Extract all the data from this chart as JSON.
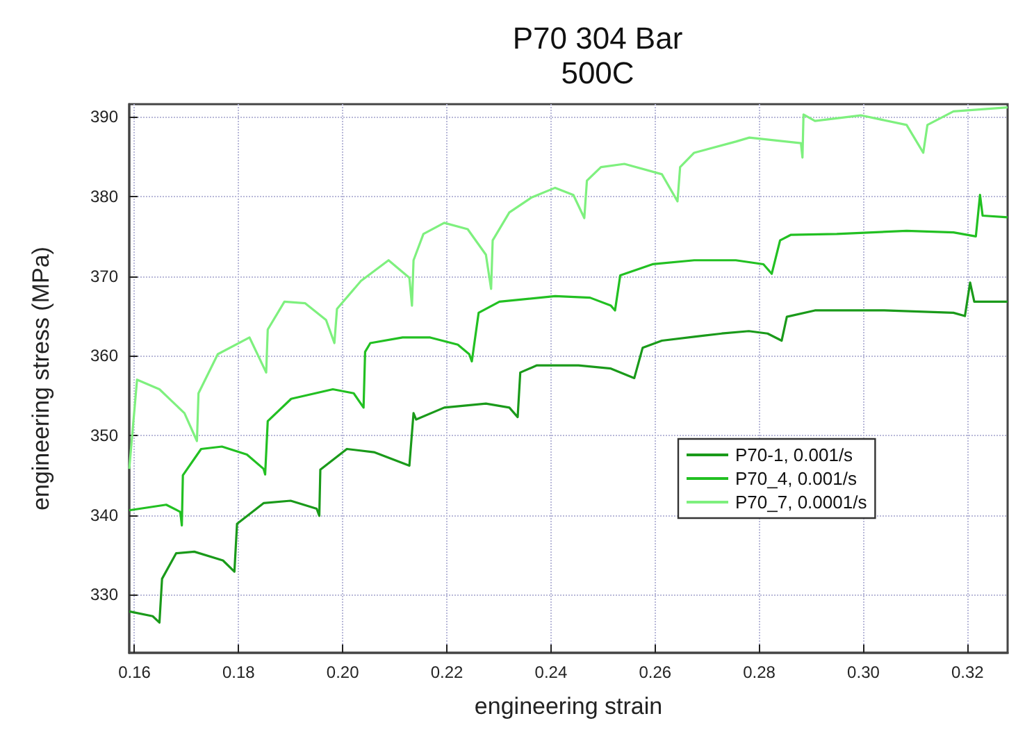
{
  "chart_data": {
    "type": "line",
    "title": "P70 304 Bar\n500C",
    "xlabel": "engineering strain",
    "ylabel": "engineering stress (MPa)",
    "xlim": [
      0.159,
      0.3277
    ],
    "ylim": [
      322.7,
      391.6
    ],
    "xticks": [
      0.16,
      0.18,
      {
        "value": 0.2,
        "label": "0.20"
      },
      0.22,
      0.24,
      0.26,
      0.28,
      {
        "value": 0.3,
        "label": "0.30"
      },
      0.32
    ],
    "yticks": [
      330,
      340,
      350,
      360,
      370,
      380,
      390
    ],
    "grid": true,
    "legend": "right",
    "marker": "none",
    "line_style": "solid",
    "series": [
      {
        "name": "P70-1, 0.001/s",
        "color": "#1a9a1a",
        "x": [
          0.159,
          0.1635,
          0.1648,
          0.1653,
          0.168,
          0.1715,
          0.177,
          0.1792,
          0.1797,
          0.1848,
          0.19,
          0.195,
          0.1955,
          0.1957,
          0.2008,
          0.206,
          0.2128,
          0.2136,
          0.2141,
          0.2195,
          0.2275,
          0.232,
          0.2336,
          0.2341,
          0.2373,
          0.2453,
          0.2515,
          0.256,
          0.2576,
          0.2613,
          0.2675,
          0.2728,
          0.278,
          0.2816,
          0.2843,
          0.2853,
          0.2907,
          0.304,
          0.3173,
          0.3195,
          0.3205,
          0.3213,
          0.3277
        ],
        "values": [
          327.9,
          327.3,
          326.5,
          332,
          335.2,
          335.4,
          334.3,
          332.9,
          338.9,
          341.5,
          341.8,
          340.8,
          339.9,
          345.7,
          348.3,
          347.9,
          346.2,
          352.8,
          352,
          353.5,
          354,
          353.5,
          352.3,
          357.9,
          358.8,
          358.8,
          358.4,
          357.2,
          361,
          361.9,
          362.4,
          362.8,
          363.1,
          362.8,
          361.9,
          364.9,
          365.7,
          365.7,
          365.4,
          365,
          369.2,
          366.8,
          366.8
        ]
      },
      {
        "name": "P70_4, 0.001/s",
        "color": "#22c022",
        "x": [
          0.159,
          0.1661,
          0.1688,
          0.1691,
          0.1693,
          0.1728,
          0.1768,
          0.1816,
          0.1848,
          0.1851,
          0.1856,
          0.1901,
          0.1981,
          0.2021,
          0.204,
          0.2043,
          0.2053,
          0.2115,
          0.2168,
          0.2221,
          0.2243,
          0.2248,
          0.2261,
          0.2301,
          0.2408,
          0.2475,
          0.2515,
          0.2523,
          0.2533,
          0.2595,
          0.2675,
          0.2755,
          0.2808,
          0.2824,
          0.284,
          0.2861,
          0.2949,
          0.3083,
          0.3173,
          0.3216,
          0.3224,
          0.3229,
          0.3277
        ],
        "values": [
          340.6,
          341.3,
          340.4,
          338.7,
          345,
          348.3,
          348.6,
          347.6,
          345.8,
          345.1,
          351.8,
          354.6,
          355.8,
          355.3,
          353.5,
          360.5,
          361.6,
          362.3,
          362.3,
          361.4,
          360.2,
          359.3,
          365.4,
          366.8,
          367.5,
          367.3,
          366.3,
          365.7,
          370.1,
          371.5,
          372,
          372,
          371.5,
          370.3,
          374.5,
          375.2,
          375.3,
          375.7,
          375.5,
          375,
          380.2,
          377.6,
          377.4
        ]
      },
      {
        "name": "P70_7, 0.0001/s",
        "color": "#7ef07e",
        "x": [
          0.159,
          0.1605,
          0.1648,
          0.1696,
          0.172,
          0.1723,
          0.176,
          0.1821,
          0.1853,
          0.1856,
          0.1888,
          0.1928,
          0.1968,
          0.1984,
          0.1989,
          0.2035,
          0.2088,
          0.2128,
          0.2133,
          0.2136,
          0.2155,
          0.2195,
          0.224,
          0.2275,
          0.2285,
          0.2288,
          0.232,
          0.2363,
          0.2408,
          0.2443,
          0.2464,
          0.2469,
          0.2496,
          0.2541,
          0.2613,
          0.2643,
          0.2648,
          0.2675,
          0.2755,
          0.2781,
          0.288,
          0.2883,
          0.2885,
          0.2907,
          0.2995,
          0.3083,
          0.3115,
          0.3123,
          0.3173,
          0.3277
        ],
        "values": [
          345.8,
          357,
          355.8,
          352.8,
          349.3,
          355.3,
          360.2,
          362.3,
          357.9,
          363.3,
          366.8,
          366.6,
          364.5,
          361.6,
          365.9,
          369.4,
          372,
          369.8,
          366.3,
          372,
          375.3,
          376.7,
          375.9,
          372.7,
          368.4,
          374.5,
          378,
          379.9,
          381.1,
          380.2,
          377.3,
          382,
          383.7,
          384.1,
          382.8,
          379.4,
          383.7,
          385.5,
          386.9,
          387.4,
          386.7,
          384.9,
          390.3,
          389.5,
          390.2,
          389,
          385.5,
          389,
          390.7,
          391.2
        ]
      }
    ]
  }
}
